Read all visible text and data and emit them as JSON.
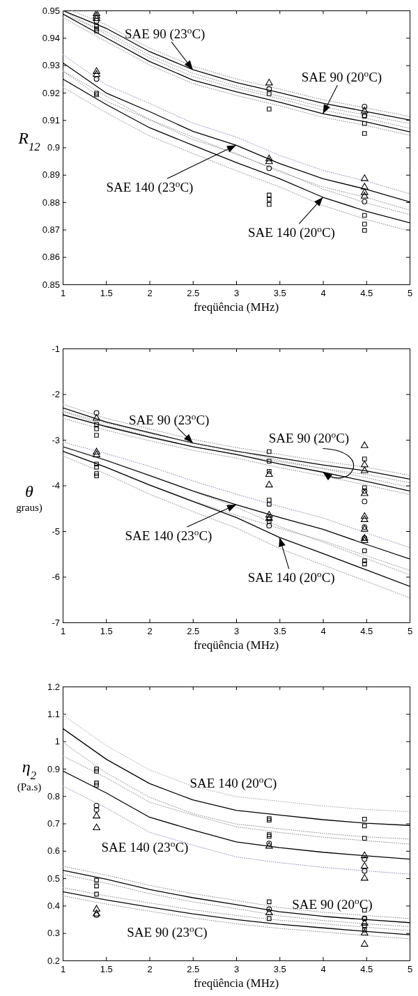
{
  "chart_data": [
    {
      "type": "line",
      "xlabel": "freqüência (MHz)",
      "ylabel": "R$_{12}$",
      "xlim": [
        1,
        5
      ],
      "ylim": [
        0.85,
        0.95
      ],
      "xticks": [
        1,
        1.5,
        2,
        2.5,
        3,
        3.5,
        4,
        4.5,
        5
      ],
      "yticks": [
        0.85,
        0.86,
        0.87,
        0.88,
        0.89,
        0.9,
        0.91,
        0.92,
        0.93,
        0.94,
        0.95
      ],
      "series": [
        {
          "color": "#000000",
          "line_style": "solid",
          "x": [
            1,
            1.5,
            2,
            2.5,
            3,
            3.5,
            4,
            4.5,
            5
          ],
          "values": [
            0.95,
            0.9435,
            0.935,
            0.9284,
            0.9237,
            0.92,
            0.9161,
            0.9131,
            0.91
          ]
        },
        {
          "color": "#808080",
          "line_style": "dotted",
          "x": [
            1.1,
            1.5,
            2,
            2.5,
            3,
            3.5,
            4,
            4.5,
            5
          ],
          "values": [
            0.95,
            0.9448,
            0.9363,
            0.9297,
            0.925,
            0.9213,
            0.9174,
            0.9144,
            0.9113
          ]
        },
        {
          "color": "#808080",
          "line_style": "dotted",
          "x": [
            1,
            1.5,
            2,
            2.5,
            3,
            3.5,
            4,
            4.5,
            5
          ],
          "values": [
            0.9487,
            0.9422,
            0.9337,
            0.9271,
            0.9224,
            0.9187,
            0.9148,
            0.9118,
            0.9087
          ]
        },
        {
          "color": "#000000",
          "line_style": "solid",
          "x": [
            1,
            1.5,
            2,
            2.5,
            3,
            3.5,
            4,
            4.5,
            5
          ],
          "values": [
            0.9487,
            0.94,
            0.9314,
            0.9246,
            0.9203,
            0.9165,
            0.9123,
            0.9093,
            0.9057
          ]
        },
        {
          "color": "#808080",
          "line_style": "dotted",
          "x": [
            1,
            1.5,
            2,
            2.5,
            3,
            3.5,
            4,
            4.5,
            5
          ],
          "values": [
            0.95,
            0.9413,
            0.9327,
            0.9259,
            0.9216,
            0.9178,
            0.9136,
            0.9106,
            0.907
          ]
        },
        {
          "color": "#808080",
          "line_style": "dotted",
          "x": [
            1,
            1.5,
            2,
            2.5,
            3,
            3.5,
            4,
            4.5,
            5
          ],
          "values": [
            0.9474,
            0.9387,
            0.9301,
            0.9233,
            0.919,
            0.9152,
            0.911,
            0.908,
            0.9044
          ]
        },
        {
          "color": "#000000",
          "line_style": "solid",
          "x": [
            1,
            1.5,
            2,
            2.5,
            3,
            3.5,
            4,
            4.5,
            5
          ],
          "values": [
            0.9309,
            0.9199,
            0.9131,
            0.9059,
            0.9008,
            0.8941,
            0.8886,
            0.8847,
            0.8801
          ]
        },
        {
          "color": "#8080c0",
          "line_style": "dotted",
          "x": [
            1,
            1.5,
            2,
            2.5,
            3,
            3.5,
            4,
            4.5,
            5
          ],
          "values": [
            0.9339,
            0.9229,
            0.9161,
            0.9089,
            0.9038,
            0.8971,
            0.8916,
            0.8877,
            0.8831
          ]
        },
        {
          "color": "#808080",
          "line_style": "dotted",
          "x": [
            1,
            1.5,
            2,
            2.5,
            3,
            3.5,
            4,
            4.5,
            5
          ],
          "values": [
            0.9279,
            0.9169,
            0.9101,
            0.9029,
            0.8978,
            0.8911,
            0.8856,
            0.8817,
            0.8771
          ]
        },
        {
          "color": "#000000",
          "line_style": "solid",
          "x": [
            1,
            1.5,
            2,
            2.5,
            3,
            3.5,
            4,
            4.5,
            5
          ],
          "values": [
            0.925,
            0.9157,
            0.9072,
            0.9008,
            0.8945,
            0.8886,
            0.8818,
            0.8767,
            0.8725
          ]
        },
        {
          "color": "#808080",
          "line_style": "dotted",
          "x": [
            1,
            1.5,
            2,
            2.5,
            3,
            3.5,
            4,
            4.5,
            5
          ],
          "values": [
            0.928,
            0.9187,
            0.9102,
            0.9038,
            0.8975,
            0.8916,
            0.8848,
            0.8797,
            0.8755
          ]
        },
        {
          "color": "#808080",
          "line_style": "dotted",
          "x": [
            1,
            1.5,
            2,
            2.5,
            3,
            3.5,
            4,
            4.5,
            5
          ],
          "values": [
            0.922,
            0.9127,
            0.9042,
            0.8978,
            0.8915,
            0.8856,
            0.8788,
            0.8737,
            0.8695
          ]
        },
        {
          "type": "scatter",
          "color": "#000000",
          "marker": "triangle",
          "x": [
            1.39,
            1.39,
            1.39,
            1.39,
            1.39,
            3.38,
            3.38,
            3.38,
            4.48,
            4.48,
            4.48,
            4.48,
            4.48
          ],
          "values": [
            0.9488,
            0.9479,
            0.947,
            0.9277,
            0.9266,
            0.9235,
            0.8958,
            0.8948,
            0.8886,
            0.8855,
            0.8835,
            0.8822,
            0.9133
          ]
        },
        {
          "type": "scatter",
          "color": "#000000",
          "marker": "circle",
          "x": [
            1.39,
            1.39,
            3.38,
            3.38,
            4.48,
            4.48,
            4.48
          ],
          "values": [
            0.9462,
            0.925,
            0.9213,
            0.8924,
            0.9149,
            0.9117,
            0.8802
          ]
        },
        {
          "type": "scatter",
          "color": "#000000",
          "marker": "square",
          "x": [
            1.39,
            1.39,
            1.39,
            1.39,
            1.39,
            3.38,
            3.38,
            3.38,
            3.38,
            3.38,
            4.48,
            4.48,
            4.48,
            4.48,
            4.48,
            4.48
          ],
          "values": [
            0.9443,
            0.9433,
            0.9425,
            0.9198,
            0.9192,
            0.9196,
            0.914,
            0.8826,
            0.881,
            0.8792,
            0.9114,
            0.9087,
            0.9051,
            0.8752,
            0.872,
            0.8697
          ]
        }
      ],
      "annotations": [
        {
          "text": "SAE 90 (23$^{o}$C)",
          "x": 2.5,
          "y": 0.9284
        },
        {
          "text": "SAE 90 (20$^{o}$C)",
          "x": 4,
          "y": 0.9123
        },
        {
          "text": "SAE 140 (23$^{o}$C)",
          "x": 3,
          "y": 0.9008
        },
        {
          "text": "SAE 140 (20$^{o}$C)",
          "x": 4,
          "y": 0.8818
        }
      ]
    },
    {
      "type": "line",
      "xlabel": "freqüência (MHz)",
      "ylabel": "θ\ngraus)",
      "xlim": [
        1,
        5
      ],
      "ylim": [
        -7,
        -1
      ],
      "xticks": [
        1,
        1.5,
        2,
        2.5,
        3,
        3.5,
        4,
        4.5,
        5
      ],
      "yticks": [
        -7,
        -6,
        -5,
        -4,
        -3,
        -2,
        -1
      ],
      "series": [
        {
          "color": "#000000",
          "line_style": "solid",
          "x": [
            1,
            1.5,
            2,
            2.5,
            3,
            3.5,
            4,
            4.5,
            5
          ],
          "values": [
            -2.3,
            -2.61,
            -2.84,
            -3.07,
            -3.25,
            -3.4,
            -3.55,
            -3.68,
            -3.86
          ]
        },
        {
          "color": "#808080",
          "line_style": "dotted",
          "x": [
            1,
            1.5,
            2,
            2.5,
            3,
            3.5,
            4,
            4.5,
            5
          ],
          "values": [
            -2.22,
            -2.53,
            -2.76,
            -2.99,
            -3.17,
            -3.32,
            -3.47,
            -3.6,
            -3.78
          ]
        },
        {
          "color": "#808080",
          "line_style": "dotted",
          "x": [
            1,
            1.5,
            2,
            2.5,
            3,
            3.5,
            4,
            4.5,
            5
          ],
          "values": [
            -2.38,
            -2.69,
            -2.92,
            -3.15,
            -3.33,
            -3.48,
            -3.63,
            -3.76,
            -3.94
          ]
        },
        {
          "color": "#000000",
          "line_style": "solid",
          "x": [
            1,
            1.5,
            2,
            2.5,
            3,
            3.5,
            4,
            4.5,
            5
          ],
          "values": [
            -2.45,
            -2.71,
            -2.94,
            -3.15,
            -3.32,
            -3.53,
            -3.71,
            -3.91,
            -4.12
          ]
        },
        {
          "color": "#808080",
          "line_style": "dotted",
          "x": [
            1,
            1.5,
            2,
            2.5,
            3,
            3.5,
            4,
            4.5,
            5
          ],
          "values": [
            -2.37,
            -2.63,
            -2.86,
            -3.07,
            -3.24,
            -3.45,
            -3.63,
            -3.83,
            -4.04
          ]
        },
        {
          "color": "#808080",
          "line_style": "dotted",
          "x": [
            1,
            1.5,
            2,
            2.5,
            3,
            3.5,
            4,
            4.5,
            5
          ],
          "values": [
            -2.53,
            -2.79,
            -3.02,
            -3.23,
            -3.4,
            -3.61,
            -3.79,
            -3.99,
            -4.2
          ]
        },
        {
          "color": "#000000",
          "line_style": "solid",
          "x": [
            1,
            1.5,
            2,
            2.5,
            3,
            3.5,
            4,
            4.5,
            5
          ],
          "values": [
            -3.15,
            -3.45,
            -3.78,
            -4.12,
            -4.42,
            -4.7,
            -4.96,
            -5.29,
            -5.61
          ]
        },
        {
          "color": "#8080c0",
          "line_style": "dotted",
          "x": [
            1,
            1.5,
            2,
            2.5,
            3,
            3.5,
            4,
            4.5,
            5
          ],
          "values": [
            -3.05,
            -3.3,
            -3.58,
            -3.9,
            -4.19,
            -4.46,
            -4.71,
            -5.04,
            -5.36
          ]
        },
        {
          "color": "#808080",
          "line_style": "dotted",
          "x": [
            1,
            1.5,
            2,
            2.5,
            3,
            3.5,
            4,
            4.5,
            5
          ],
          "values": [
            -3.25,
            -3.6,
            -3.98,
            -4.34,
            -4.65,
            -4.94,
            -5.21,
            -5.54,
            -5.86
          ]
        },
        {
          "color": "#000000",
          "line_style": "solid",
          "x": [
            1,
            1.5,
            2,
            2.5,
            3,
            3.5,
            4,
            4.5,
            5
          ],
          "values": [
            -3.25,
            -3.6,
            -3.99,
            -4.35,
            -4.7,
            -5.14,
            -5.49,
            -5.85,
            -6.21
          ]
        },
        {
          "color": "#808080",
          "line_style": "dotted",
          "x": [
            1,
            1.5,
            2,
            2.5,
            3,
            3.5,
            4,
            4.5,
            5
          ],
          "values": [
            -3.15,
            -3.45,
            -3.79,
            -4.13,
            -4.47,
            -4.9,
            -5.24,
            -5.6,
            -5.96
          ]
        },
        {
          "color": "#808080",
          "line_style": "dotted",
          "x": [
            1,
            1.5,
            2,
            2.5,
            3,
            3.5,
            4,
            4.5,
            5
          ],
          "values": [
            -3.35,
            -3.75,
            -4.19,
            -4.57,
            -4.93,
            -5.38,
            -5.74,
            -6.1,
            -6.46
          ]
        },
        {
          "type": "scatter",
          "color": "#000000",
          "marker": "triangle",
          "x": [
            1.39,
            1.39,
            1.39,
            3.38,
            3.38,
            3.38,
            3.38,
            4.48,
            4.48,
            4.48,
            4.48,
            4.48,
            4.48,
            4.48,
            4.48,
            4.48
          ],
          "values": [
            -2.53,
            -3.27,
            -3.33,
            -3.76,
            -3.99,
            -4.65,
            -4.72,
            -3.13,
            -3.55,
            -3.68,
            -4.18,
            -4.68,
            -4.75,
            -4.96,
            -5.16,
            -5.21
          ]
        },
        {
          "type": "scatter",
          "color": "#000000",
          "marker": "circle",
          "x": [
            1.39,
            3.38,
            4.48,
            4.48,
            4.48,
            4.48
          ],
          "values": [
            -2.41,
            -4.88,
            -4.12,
            -4.35,
            -4.91,
            -5.15
          ]
        },
        {
          "type": "scatter",
          "color": "#000000",
          "marker": "square",
          "x": [
            1.39,
            1.39,
            1.39,
            1.39,
            1.39,
            1.39,
            1.39,
            3.38,
            3.38,
            3.38,
            3.38,
            3.38,
            3.38,
            3.38,
            4.48,
            4.48,
            4.48,
            4.48,
            4.48
          ],
          "values": [
            -2.66,
            -2.76,
            -2.9,
            -3.53,
            -3.6,
            -3.74,
            -3.79,
            -3.26,
            -3.47,
            -3.69,
            -4.32,
            -4.41,
            -4.73,
            -4.79,
            -3.42,
            -4.05,
            -5.43,
            -5.65,
            -5.72
          ]
        }
      ],
      "annotations": [
        {
          "text": "SAE 90 (23$^{o}$C)",
          "x": 2.5,
          "y": -3.07
        },
        {
          "text": "SAE 90 (20$^{o}$C)",
          "x": 4,
          "y": -3.71
        },
        {
          "text": "SAE 140 (23$^{o}$C)",
          "x": 3,
          "y": -4.42
        },
        {
          "text": "SAE 140 (20$^{o}$C)",
          "x": 3.5,
          "y": -5.14
        }
      ]
    },
    {
      "type": "line",
      "xlabel": "freqüência (MHz)",
      "ylabel": "η$_{2}$\n(Pa.s)",
      "xlim": [
        1,
        5
      ],
      "ylim": [
        0.2,
        1.2
      ],
      "xticks": [
        1,
        1.5,
        2,
        2.5,
        3,
        3.5,
        4,
        4.5,
        5
      ],
      "yticks": [
        0.2,
        0.3,
        0.4,
        0.5,
        0.6,
        0.7,
        0.8,
        0.9,
        1,
        1.1,
        1.2
      ],
      "series": [
        {
          "color": "#000000",
          "line_style": "solid",
          "x": [
            1,
            1.5,
            2,
            2.5,
            3,
            3.5,
            4,
            4.5,
            5
          ],
          "values": [
            1.047,
            0.935,
            0.846,
            0.786,
            0.748,
            0.731,
            0.714,
            0.701,
            0.693
          ]
        },
        {
          "color": "#a0a0a0",
          "line_style": "dotted",
          "x": [
            1,
            1.5,
            2,
            2.5,
            3,
            3.5,
            4,
            4.5,
            5
          ],
          "values": [
            1.097,
            0.985,
            0.896,
            0.836,
            0.798,
            0.781,
            0.764,
            0.751,
            0.743
          ]
        },
        {
          "color": "#808080",
          "line_style": "dotted",
          "x": [
            1,
            1.5,
            2,
            2.5,
            3,
            3.5,
            4,
            4.5,
            5
          ],
          "values": [
            0.997,
            0.885,
            0.796,
            0.736,
            0.698,
            0.681,
            0.664,
            0.651,
            0.643
          ]
        },
        {
          "color": "#000000",
          "line_style": "solid",
          "x": [
            1,
            1.5,
            2,
            2.5,
            3,
            3.5,
            4,
            4.5,
            5
          ],
          "values": [
            0.892,
            0.812,
            0.723,
            0.676,
            0.633,
            0.612,
            0.595,
            0.582,
            0.57
          ]
        },
        {
          "color": "#808080",
          "line_style": "dotted",
          "x": [
            1,
            1.5,
            2,
            2.5,
            3,
            3.5,
            4,
            4.5,
            5
          ],
          "values": [
            0.947,
            0.867,
            0.778,
            0.731,
            0.688,
            0.667,
            0.65,
            0.637,
            0.625
          ]
        },
        {
          "color": "#8080c0",
          "line_style": "dotted",
          "x": [
            1,
            1.5,
            2,
            2.5,
            3,
            3.5,
            4,
            4.5,
            5
          ],
          "values": [
            0.837,
            0.757,
            0.668,
            0.621,
            0.578,
            0.557,
            0.54,
            0.527,
            0.515
          ]
        },
        {
          "color": "#000000",
          "line_style": "solid",
          "x": [
            1,
            1.5,
            2,
            2.5,
            3,
            3.5,
            4,
            4.5,
            5
          ],
          "values": [
            0.529,
            0.497,
            0.459,
            0.429,
            0.404,
            0.378,
            0.361,
            0.349,
            0.338
          ]
        },
        {
          "color": "#808080",
          "line_style": "dotted",
          "x": [
            1,
            1.5,
            2,
            2.5,
            3,
            3.5,
            4,
            4.5,
            5
          ],
          "values": [
            0.544,
            0.512,
            0.474,
            0.444,
            0.419,
            0.393,
            0.376,
            0.364,
            0.353
          ]
        },
        {
          "color": "#808080",
          "line_style": "dotted",
          "x": [
            1,
            1.5,
            2,
            2.5,
            3,
            3.5,
            4,
            4.5,
            5
          ],
          "values": [
            0.514,
            0.482,
            0.444,
            0.414,
            0.389,
            0.363,
            0.346,
            0.334,
            0.323
          ]
        },
        {
          "color": "#000000",
          "line_style": "solid",
          "x": [
            1,
            1.5,
            2,
            2.5,
            3,
            3.5,
            4,
            4.5,
            5
          ],
          "values": [
            0.451,
            0.421,
            0.395,
            0.37,
            0.349,
            0.332,
            0.319,
            0.306,
            0.294
          ]
        },
        {
          "color": "#808080",
          "line_style": "dotted",
          "x": [
            1,
            1.5,
            2,
            2.5,
            3,
            3.5,
            4,
            4.5,
            5
          ],
          "values": [
            0.466,
            0.436,
            0.41,
            0.385,
            0.364,
            0.347,
            0.334,
            0.321,
            0.309
          ]
        },
        {
          "color": "#808080",
          "line_style": "dotted",
          "x": [
            1,
            1.5,
            2,
            2.5,
            3,
            3.5,
            4,
            4.5,
            5
          ],
          "values": [
            0.436,
            0.406,
            0.38,
            0.355,
            0.334,
            0.317,
            0.304,
            0.291,
            0.279
          ]
        },
        {
          "type": "scatter",
          "color": "#000000",
          "marker": "triangle",
          "x": [
            1.39,
            1.39,
            1.39,
            1.39,
            3.38,
            3.38,
            4.48,
            4.48,
            4.48,
            4.48,
            4.48,
            4.48
          ],
          "values": [
            0.727,
            0.684,
            0.387,
            0.37,
            0.617,
            0.374,
            0.582,
            0.544,
            0.5,
            0.336,
            0.3,
            0.259
          ]
        },
        {
          "type": "scatter",
          "color": "#000000",
          "marker": "circle",
          "x": [
            1.39,
            1.39,
            1.39,
            3.38,
            3.38,
            4.48,
            4.48,
            4.48
          ],
          "values": [
            0.765,
            0.75,
            0.366,
            0.627,
            0.387,
            0.57,
            0.527,
            0.353
          ]
        },
        {
          "type": "scatter",
          "color": "#000000",
          "marker": "square",
          "x": [
            1.39,
            1.39,
            1.39,
            1.39,
            1.39,
            1.39,
            1.39,
            3.38,
            3.38,
            3.38,
            3.38,
            3.38,
            3.38,
            4.48,
            4.48,
            4.48,
            4.48,
            4.48,
            4.48,
            4.48
          ],
          "values": [
            0.899,
            0.891,
            0.848,
            0.84,
            0.493,
            0.472,
            0.442,
            0.718,
            0.712,
            0.659,
            0.653,
            0.414,
            0.353,
            0.716,
            0.691,
            0.646,
            0.383,
            0.353,
            0.327,
            0.311
          ]
        }
      ],
      "annotations": [
        "SAE 140 (20$^{o}$C)",
        "SAE 140 (23$^{o}$C)",
        "SAE 90 (20$^{o}$C)",
        "SAE 90 (23$^{o}$C)"
      ]
    }
  ]
}
